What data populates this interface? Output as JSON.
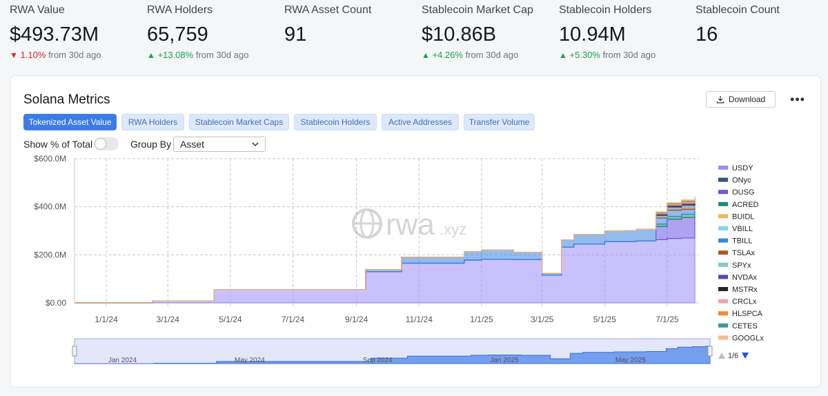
{
  "stats": [
    {
      "label": "RWA Value",
      "value": "$493.73M",
      "change": "1.10%",
      "direction": "down",
      "suffix": "from 30d ago"
    },
    {
      "label": "RWA Holders",
      "value": "65,759",
      "change": "+13.08%",
      "direction": "up",
      "suffix": "from 30d ago"
    },
    {
      "label": "RWA Asset Count",
      "value": "91",
      "change": "",
      "direction": "",
      "suffix": ""
    },
    {
      "label": "Stablecoin Market Cap",
      "value": "$10.86B",
      "change": "+4.26%",
      "direction": "up",
      "suffix": "from 30d ago"
    },
    {
      "label": "Stablecoin Holders",
      "value": "10.94M",
      "change": "+5.30%",
      "direction": "up",
      "suffix": "from 30d ago"
    },
    {
      "label": "Stablecoin Count",
      "value": "16",
      "change": "",
      "direction": "",
      "suffix": ""
    }
  ],
  "card": {
    "title": "Solana Metrics",
    "download_label": "Download",
    "more_label": "•••"
  },
  "tabs": [
    {
      "label": "Tokenized Asset Value",
      "active": true
    },
    {
      "label": "RWA Holders",
      "active": false
    },
    {
      "label": "Stablecoin Market Caps",
      "active": false
    },
    {
      "label": "Stablecoin Holders",
      "active": false
    },
    {
      "label": "Active Addresses",
      "active": false
    },
    {
      "label": "Transfer Volume",
      "active": false
    }
  ],
  "controls": {
    "show_pct_label": "Show % of Total",
    "show_pct_on": false,
    "group_by_label": "Group By",
    "group_by_value": "Asset"
  },
  "watermark": {
    "brand": "rwa",
    "suffix": ".xyz"
  },
  "legend_page": "1/6",
  "colors": {
    "accent": "#3b7de8",
    "down": "#e0212f",
    "up": "#16a34a"
  },
  "chart_data": {
    "type": "area",
    "stacked": true,
    "yticks": [
      "$600.0M",
      "$400.0M",
      "$200.0M",
      "$0.00"
    ],
    "ylim": [
      0,
      600
    ],
    "y_unit": "$M",
    "xticks": [
      "1/1/24",
      "3/1/24",
      "5/1/24",
      "7/1/24",
      "9/1/24",
      "11/1/24",
      "1/1/25",
      "3/1/25",
      "5/1/25",
      "7/1/25"
    ],
    "x": [
      "2023-12-01",
      "2024-01-01",
      "2024-02-15",
      "2024-04-15",
      "2024-08-20",
      "2024-09-10",
      "2024-10-15",
      "2024-12-15",
      "2025-01-01",
      "2025-02-01",
      "2025-03-01",
      "2025-03-10",
      "2025-03-20",
      "2025-04-01",
      "2025-05-01",
      "2025-05-20",
      "2025-06-01",
      "2025-06-20",
      "2025-07-01",
      "2025-07-15",
      "2025-07-28"
    ],
    "series": [
      {
        "name": "USDY",
        "color": "#9d8ef7",
        "values": [
          0,
          0,
          8,
          55,
          55,
          130,
          165,
          178,
          182,
          180,
          115,
          115,
          232,
          245,
          255,
          255,
          258,
          263,
          268,
          270,
          268
        ]
      },
      {
        "name": "ONyc",
        "color": "#2e5b73",
        "values": [
          0,
          0,
          0,
          0,
          0,
          0,
          0,
          0,
          0,
          0,
          0,
          0,
          0,
          0,
          0,
          0,
          0,
          0,
          0,
          0,
          0
        ]
      },
      {
        "name": "OUSG",
        "color": "#6b55e6",
        "values": [
          0,
          0,
          0,
          0,
          0,
          0,
          0,
          0,
          0,
          0,
          0,
          0,
          0,
          0,
          0,
          0,
          0,
          55,
          80,
          85,
          95
        ]
      },
      {
        "name": "ACRED",
        "color": "#1e8f6e",
        "values": [
          0,
          0,
          0,
          0,
          0,
          0,
          0,
          0,
          0,
          0,
          0,
          0,
          0,
          0,
          0,
          0,
          0,
          10,
          12,
          14,
          15
        ]
      },
      {
        "name": "BUIDL",
        "color": "#f3b860",
        "values": [
          0,
          0,
          0,
          0,
          0,
          0,
          0,
          0,
          0,
          0,
          0,
          0,
          0,
          0,
          0,
          0,
          0,
          0,
          0,
          0,
          0
        ]
      },
      {
        "name": "VBILL",
        "color": "#7dd8ee",
        "values": [
          0,
          0,
          0,
          0,
          0,
          0,
          0,
          0,
          0,
          0,
          0,
          0,
          0,
          0,
          0,
          0,
          0,
          0,
          0,
          0,
          0
        ]
      },
      {
        "name": "TBILL",
        "color": "#3b83e0",
        "values": [
          0,
          0,
          0,
          0,
          0,
          8,
          25,
          35,
          38,
          30,
          8,
          8,
          30,
          40,
          44,
          46,
          48,
          25,
          25,
          20,
          20
        ]
      },
      {
        "name": "TSLAx",
        "color": "#a8572e",
        "values": [
          0,
          0,
          0,
          0,
          0,
          0,
          0,
          0,
          0,
          0,
          0,
          0,
          0,
          0,
          0,
          0,
          0,
          5,
          6,
          8,
          10
        ]
      },
      {
        "name": "SPYx",
        "color": "#83c9c0",
        "values": [
          0,
          0,
          0,
          0,
          0,
          0,
          0,
          0,
          0,
          0,
          0,
          0,
          0,
          0,
          0,
          0,
          0,
          5,
          6,
          7,
          8
        ]
      },
      {
        "name": "NVDAx",
        "color": "#5446b8",
        "values": [
          0,
          0,
          0,
          0,
          0,
          0,
          0,
          0,
          0,
          0,
          0,
          0,
          0,
          0,
          0,
          0,
          0,
          4,
          5,
          6,
          6
        ]
      },
      {
        "name": "MSTRx",
        "color": "#1f2a26",
        "values": [
          0,
          0,
          0,
          0,
          0,
          0,
          0,
          0,
          0,
          0,
          0,
          0,
          0,
          0,
          0,
          0,
          0,
          3,
          4,
          5,
          5
        ]
      },
      {
        "name": "CRCLx",
        "color": "#f2a5a0",
        "values": [
          0,
          0,
          0,
          0,
          0,
          0,
          0,
          0,
          0,
          0,
          0,
          0,
          0,
          0,
          0,
          0,
          0,
          3,
          4,
          4,
          5
        ]
      },
      {
        "name": "HLSPCA",
        "color": "#f28a2e",
        "values": [
          0,
          0,
          0,
          0,
          0,
          0,
          0,
          0,
          0,
          0,
          0,
          0,
          0,
          0,
          0,
          0,
          0,
          2,
          3,
          4,
          5
        ]
      },
      {
        "name": "CETES",
        "color": "#3a9e93",
        "values": [
          0,
          0,
          0,
          0,
          0,
          0,
          0,
          0,
          0,
          0,
          0,
          0,
          0,
          0,
          0,
          0,
          0,
          2,
          2,
          3,
          3
        ]
      },
      {
        "name": "GOOGLx",
        "color": "#f5b98c",
        "values": [
          0,
          0,
          0,
          0,
          0,
          0,
          0,
          0,
          0,
          0,
          0,
          0,
          0,
          0,
          0,
          0,
          0,
          2,
          2,
          3,
          3
        ]
      }
    ],
    "navigator": {
      "labels": [
        "Jan 2024",
        "May 2024",
        "Sep 2024",
        "Jan 2025",
        "May 2025"
      ]
    },
    "grid": true,
    "legend_position": "right"
  }
}
